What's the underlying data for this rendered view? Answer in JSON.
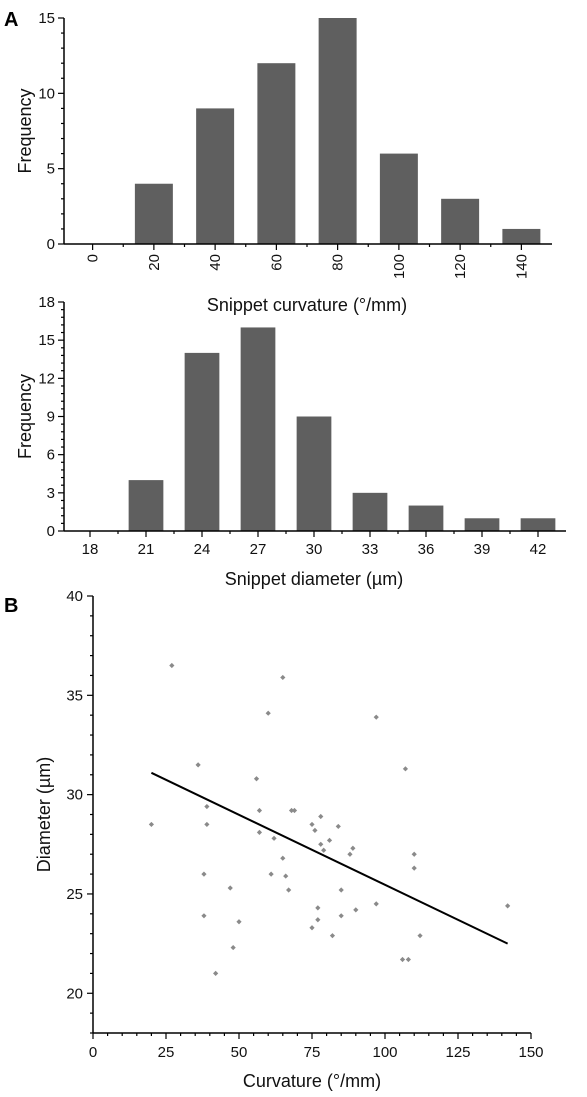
{
  "figure": {
    "panel_a_label": "A",
    "panel_b_label": "B"
  },
  "chart_data": [
    {
      "id": "hist-curvature",
      "type": "bar",
      "categories": [
        "0",
        "20",
        "40",
        "60",
        "80",
        "100",
        "120",
        "140"
      ],
      "values": [
        0,
        4,
        9,
        12,
        15,
        6,
        3,
        1
      ],
      "xlabel": "Snippet curvature (°/mm)",
      "ylabel": "Frequency",
      "ylim": [
        0,
        15
      ],
      "yticks": [
        0,
        5,
        10,
        15
      ],
      "bar_color": "#5f5f5f",
      "grid": false
    },
    {
      "id": "hist-diameter",
      "type": "bar",
      "categories": [
        "18",
        "21",
        "24",
        "27",
        "30",
        "33",
        "36",
        "39",
        "42"
      ],
      "values": [
        0,
        4,
        14,
        16,
        9,
        3,
        2,
        1,
        1
      ],
      "xlabel": "Snippet diameter (µm)",
      "ylabel": "Frequency",
      "ylim": [
        0,
        18
      ],
      "yticks": [
        0,
        3,
        6,
        9,
        12,
        15,
        18
      ],
      "bar_color": "#5f5f5f",
      "grid": false
    },
    {
      "id": "scatter-curv-diam",
      "type": "scatter",
      "xlabel": "Curvature (°/mm)",
      "ylabel": "Diameter (µm)",
      "xlim": [
        0,
        150
      ],
      "ylim": [
        18,
        40
      ],
      "xticks": [
        0,
        25,
        50,
        75,
        100,
        125,
        150
      ],
      "yticks": [
        20,
        25,
        30,
        35,
        40
      ],
      "point_color": "#8a8a8a",
      "line_color": "#000000",
      "regression_line": {
        "x": [
          20,
          142
        ],
        "y": [
          31.1,
          22.5
        ]
      },
      "points": [
        {
          "x": 20,
          "y": 28.5
        },
        {
          "x": 27,
          "y": 36.5
        },
        {
          "x": 36,
          "y": 31.5
        },
        {
          "x": 38,
          "y": 26.0
        },
        {
          "x": 38,
          "y": 23.9
        },
        {
          "x": 39,
          "y": 28.5
        },
        {
          "x": 39,
          "y": 29.4
        },
        {
          "x": 42,
          "y": 21.0
        },
        {
          "x": 47,
          "y": 25.3
        },
        {
          "x": 48,
          "y": 22.3
        },
        {
          "x": 50,
          "y": 23.6
        },
        {
          "x": 56,
          "y": 30.8
        },
        {
          "x": 57,
          "y": 28.1
        },
        {
          "x": 57,
          "y": 29.2
        },
        {
          "x": 60,
          "y": 34.1
        },
        {
          "x": 61,
          "y": 26.0
        },
        {
          "x": 62,
          "y": 27.8
        },
        {
          "x": 65,
          "y": 35.9
        },
        {
          "x": 65,
          "y": 26.8
        },
        {
          "x": 66,
          "y": 25.9
        },
        {
          "x": 67,
          "y": 25.2
        },
        {
          "x": 68,
          "y": 29.2
        },
        {
          "x": 69,
          "y": 29.2
        },
        {
          "x": 75,
          "y": 28.5
        },
        {
          "x": 75,
          "y": 23.3
        },
        {
          "x": 76,
          "y": 28.2
        },
        {
          "x": 77,
          "y": 24.3
        },
        {
          "x": 77,
          "y": 23.7
        },
        {
          "x": 78,
          "y": 27.5
        },
        {
          "x": 78,
          "y": 28.9
        },
        {
          "x": 79,
          "y": 27.2
        },
        {
          "x": 81,
          "y": 27.7
        },
        {
          "x": 82,
          "y": 22.9
        },
        {
          "x": 84,
          "y": 28.4
        },
        {
          "x": 85,
          "y": 25.2
        },
        {
          "x": 85,
          "y": 23.9
        },
        {
          "x": 88,
          "y": 27.0
        },
        {
          "x": 89,
          "y": 27.3
        },
        {
          "x": 90,
          "y": 24.2
        },
        {
          "x": 97,
          "y": 33.9
        },
        {
          "x": 97,
          "y": 24.5
        },
        {
          "x": 106,
          "y": 21.7
        },
        {
          "x": 107,
          "y": 31.3
        },
        {
          "x": 108,
          "y": 21.7
        },
        {
          "x": 110,
          "y": 27.0
        },
        {
          "x": 110,
          "y": 26.3
        },
        {
          "x": 112,
          "y": 22.9
        },
        {
          "x": 142,
          "y": 24.4
        }
      ]
    }
  ]
}
